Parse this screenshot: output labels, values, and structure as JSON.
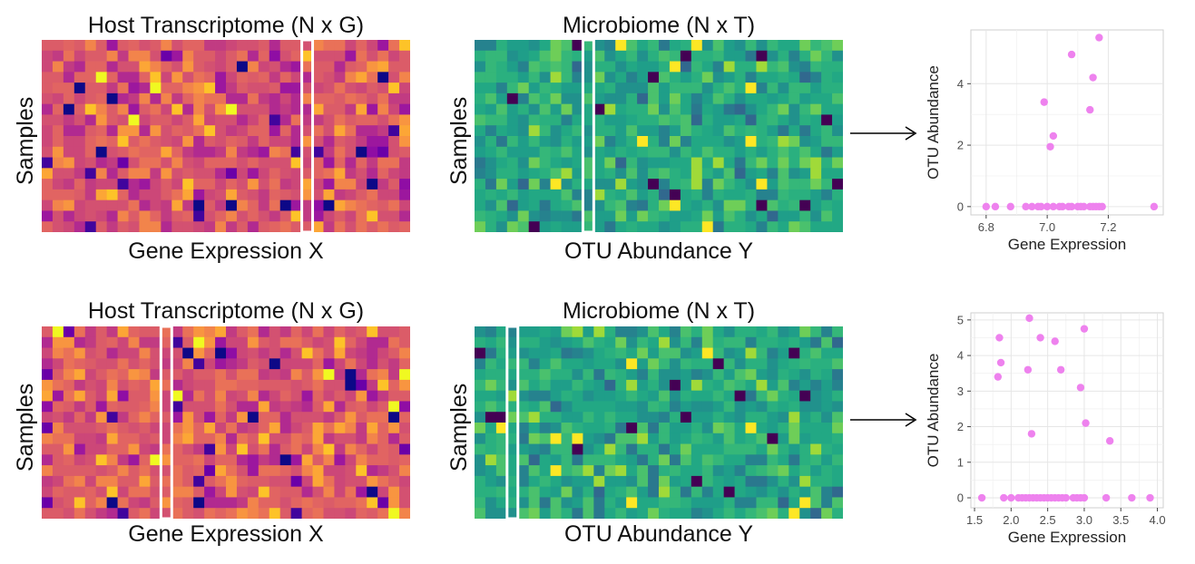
{
  "panels": [
    {
      "left": {
        "title": "Host Transcriptome (N x G)",
        "ylabel": "Samples",
        "xlabel": "Gene Expression  X",
        "palette": "plasma",
        "highlight_column": 24
      },
      "middle": {
        "title": "Microbiome (N x T)",
        "ylabel": "Samples",
        "xlabel": "OTU Abundance  Y",
        "palette": "viridis",
        "highlight_column": 10
      }
    },
    {
      "left": {
        "title": "Host Transcriptome (N x G)",
        "ylabel": "Samples",
        "xlabel": "Gene Expression  X",
        "palette": "plasma",
        "highlight_column": 11
      },
      "middle": {
        "title": "Microbiome (N x T)",
        "ylabel": "Samples",
        "xlabel": "OTU Abundance  Y",
        "palette": "viridis",
        "highlight_column": 3
      }
    }
  ],
  "chart_data": [
    {
      "type": "scatter",
      "xlabel": "Gene Expression",
      "ylabel": "OTU Abundance",
      "xlim": [
        6.75,
        7.38
      ],
      "ylim": [
        -0.27,
        5.75
      ],
      "xticks": [
        "6.8",
        "7.0",
        "7.2"
      ],
      "xtick_values": [
        6.8,
        7.0,
        7.2
      ],
      "yticks": [
        "0",
        "2",
        "4"
      ],
      "ytick_values": [
        0,
        2,
        4
      ],
      "grid": true,
      "point_color": "#ee82ee",
      "points": [
        [
          6.8,
          0
        ],
        [
          6.83,
          0
        ],
        [
          6.88,
          0
        ],
        [
          6.93,
          0
        ],
        [
          6.95,
          0
        ],
        [
          6.97,
          0
        ],
        [
          6.98,
          0
        ],
        [
          7.0,
          0
        ],
        [
          7.02,
          0
        ],
        [
          7.04,
          0
        ],
        [
          7.05,
          0
        ],
        [
          7.07,
          0
        ],
        [
          7.08,
          0
        ],
        [
          7.1,
          0
        ],
        [
          7.11,
          0
        ],
        [
          7.12,
          0
        ],
        [
          7.14,
          0
        ],
        [
          7.15,
          0
        ],
        [
          7.16,
          0
        ],
        [
          7.17,
          0
        ],
        [
          7.18,
          0
        ],
        [
          7.35,
          0
        ],
        [
          6.99,
          3.4
        ],
        [
          7.01,
          1.95
        ],
        [
          7.02,
          2.3
        ],
        [
          7.08,
          4.95
        ],
        [
          7.14,
          3.15
        ],
        [
          7.15,
          4.2
        ],
        [
          7.17,
          5.5
        ]
      ]
    },
    {
      "type": "scatter",
      "xlabel": "Gene Expression",
      "ylabel": "OTU Abundance",
      "xlim": [
        1.45,
        4.08
      ],
      "ylim": [
        -0.28,
        5.2
      ],
      "xticks": [
        "1.5",
        "2.0",
        "2.5",
        "3.0",
        "3.5",
        "4.0"
      ],
      "xtick_values": [
        1.5,
        2.0,
        2.5,
        3.0,
        3.5,
        4.0
      ],
      "yticks": [
        "0",
        "1",
        "2",
        "3",
        "4",
        "5"
      ],
      "ytick_values": [
        0,
        1,
        2,
        3,
        4,
        5
      ],
      "grid": true,
      "point_color": "#ee82ee",
      "points": [
        [
          1.6,
          0
        ],
        [
          1.9,
          0
        ],
        [
          2.0,
          0
        ],
        [
          2.1,
          0
        ],
        [
          2.15,
          0
        ],
        [
          2.2,
          0
        ],
        [
          2.25,
          0
        ],
        [
          2.3,
          0
        ],
        [
          2.35,
          0
        ],
        [
          2.4,
          0
        ],
        [
          2.45,
          0
        ],
        [
          2.5,
          0
        ],
        [
          2.55,
          0
        ],
        [
          2.6,
          0
        ],
        [
          2.65,
          0
        ],
        [
          2.7,
          0
        ],
        [
          2.75,
          0
        ],
        [
          2.85,
          0
        ],
        [
          2.9,
          0
        ],
        [
          2.95,
          0
        ],
        [
          3.0,
          0
        ],
        [
          3.3,
          0
        ],
        [
          3.65,
          0
        ],
        [
          3.9,
          0
        ],
        [
          1.82,
          3.4
        ],
        [
          1.84,
          4.5
        ],
        [
          1.86,
          3.8
        ],
        [
          2.25,
          5.05
        ],
        [
          2.23,
          3.6
        ],
        [
          2.28,
          1.8
        ],
        [
          2.4,
          4.5
        ],
        [
          2.6,
          4.4
        ],
        [
          2.68,
          3.6
        ],
        [
          2.95,
          3.1
        ],
        [
          3.0,
          4.75
        ],
        [
          3.02,
          2.1
        ],
        [
          3.35,
          1.6
        ]
      ]
    }
  ]
}
